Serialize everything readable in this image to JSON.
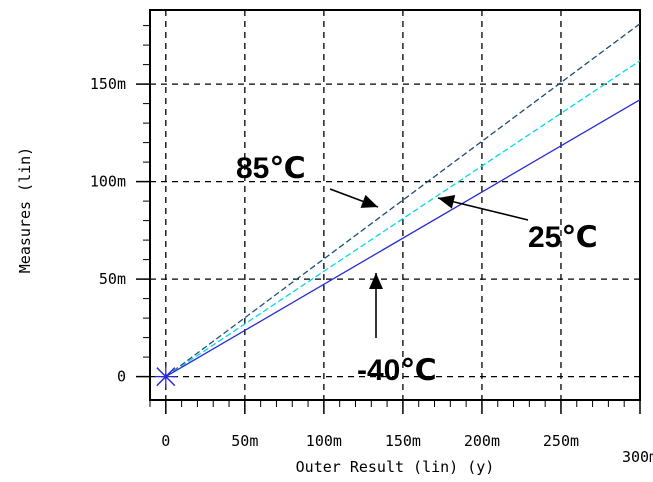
{
  "chart_data": {
    "type": "line",
    "xlabel": "Outer Result (lin) (y)",
    "ylabel": "Measures (lin)",
    "xlim": [
      -0.01,
      0.3
    ],
    "ylim": [
      -0.012,
      0.188
    ],
    "x_ticks": [
      {
        "value": 0,
        "label": "0"
      },
      {
        "value": 0.05,
        "label": "50m"
      },
      {
        "value": 0.1,
        "label": "100m"
      },
      {
        "value": 0.15,
        "label": "150m"
      },
      {
        "value": 0.2,
        "label": "200m"
      },
      {
        "value": 0.25,
        "label": "250m"
      },
      {
        "value": 0.3,
        "label": "300m"
      }
    ],
    "y_ticks": [
      {
        "value": 0,
        "label": "0"
      },
      {
        "value": 0.05,
        "label": "50m"
      },
      {
        "value": 0.1,
        "label": "100m"
      },
      {
        "value": 0.15,
        "label": "150m"
      }
    ],
    "grid": true,
    "series": [
      {
        "name": "85℃",
        "color": "#1f4e79",
        "dash": "dashed",
        "x": [
          0,
          0.3
        ],
        "y": [
          0,
          0.181
        ]
      },
      {
        "name": "25℃",
        "color": "#00d8e8",
        "dash": "dashed",
        "x": [
          0,
          0.3
        ],
        "y": [
          0,
          0.162
        ]
      },
      {
        "name": "-40℃",
        "color": "#2b2bd4",
        "dash": "solid",
        "x": [
          0,
          0.3
        ],
        "y": [
          0,
          0.142
        ]
      }
    ],
    "annotations": [
      {
        "text": "85℃",
        "series": "85℃"
      },
      {
        "text": "25℃",
        "series": "25℃"
      },
      {
        "text": "-40℃",
        "series": "-40℃"
      }
    ],
    "origin_marker": "cross",
    "origin_marker_color": "#2b2bd4"
  }
}
